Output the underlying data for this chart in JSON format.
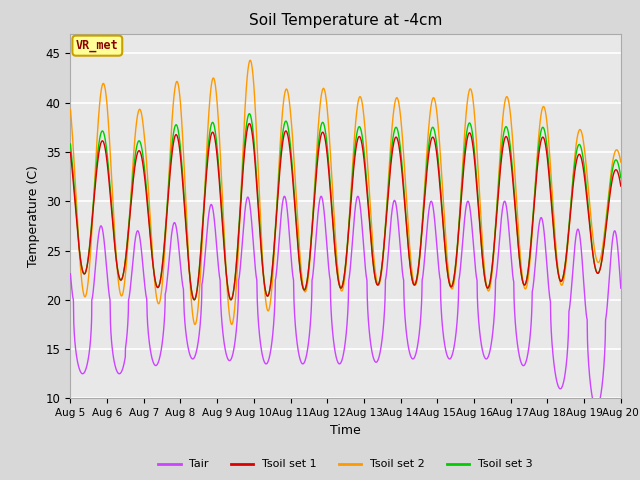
{
  "title": "Soil Temperature at -4cm",
  "xlabel": "Time",
  "ylabel": "Temperature (C)",
  "ylim": [
    10,
    47
  ],
  "xlim": [
    0,
    15
  ],
  "background_color": "#d8d8d8",
  "plot_bg_color": "#e8e8e8",
  "annotation_text": "VR_met",
  "annotation_color": "#8B0000",
  "annotation_bg": "#ffff99",
  "annotation_border": "#c8a000",
  "colors": {
    "Tair": "#cc44ff",
    "Tsoil1": "#dd0000",
    "Tsoil2": "#ff9900",
    "Tsoil3": "#00cc00"
  },
  "legend_labels": [
    "Tair",
    "Tsoil set 1",
    "Tsoil set 2",
    "Tsoil set 3"
  ],
  "xtick_labels": [
    "Aug 5",
    "Aug 6",
    "Aug 7",
    "Aug 8",
    "Aug 9",
    "Aug 10",
    "Aug 11",
    "Aug 12",
    "Aug 13",
    "Aug 14",
    "Aug 15",
    "Aug 16",
    "Aug 17",
    "Aug 18",
    "Aug 19",
    "Aug 20"
  ],
  "ytick_values": [
    10,
    15,
    20,
    25,
    30,
    35,
    40,
    45
  ],
  "n_days": 15,
  "points_per_day": 240
}
